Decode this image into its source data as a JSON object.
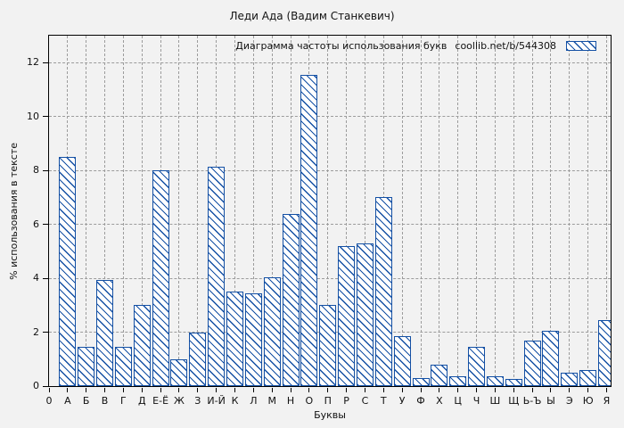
{
  "title": "Леди Ада (Вадим Станкевич)",
  "legend": {
    "label": "Диаграмма частоты использования букв",
    "source": "coollib.net/b/544308"
  },
  "axes": {
    "x_label": "Буквы",
    "y_label": "% использования в тексте",
    "origin_label": "0",
    "y_ticks": [
      0,
      2,
      4,
      6,
      8,
      10,
      12
    ]
  },
  "colors": {
    "background": "#f2f2f2",
    "frame": "#000000",
    "grid": "#9c9c9c",
    "bar_border": "#1450a4",
    "bar_fill": "#ffffff"
  },
  "chart_data": {
    "type": "bar",
    "title": "Леди Ада (Вадим Станкевич)",
    "xlabel": "Буквы",
    "ylabel": "% использования в тексте",
    "ylim": [
      0,
      13
    ],
    "grid": true,
    "legend_position": "top-right",
    "hatch": "diagonal-backslash",
    "categories": [
      "А",
      "Б",
      "В",
      "Г",
      "Д",
      "Е-Ё",
      "Ж",
      "З",
      "И-Й",
      "К",
      "Л",
      "М",
      "Н",
      "О",
      "П",
      "Р",
      "С",
      "Т",
      "У",
      "Ф",
      "Х",
      "Ц",
      "Ч",
      "Ш",
      "Щ",
      "Ь-Ъ",
      "Ы",
      "Э",
      "Ю",
      "Я"
    ],
    "values": [
      8.5,
      1.45,
      3.95,
      1.45,
      3.0,
      8.0,
      1.0,
      2.0,
      8.15,
      3.5,
      3.45,
      4.05,
      6.4,
      11.55,
      3.0,
      5.2,
      5.3,
      7.0,
      1.85,
      0.3,
      0.8,
      0.35,
      1.45,
      0.35,
      0.25,
      1.7,
      2.05,
      0.5,
      0.6,
      2.45
    ]
  }
}
